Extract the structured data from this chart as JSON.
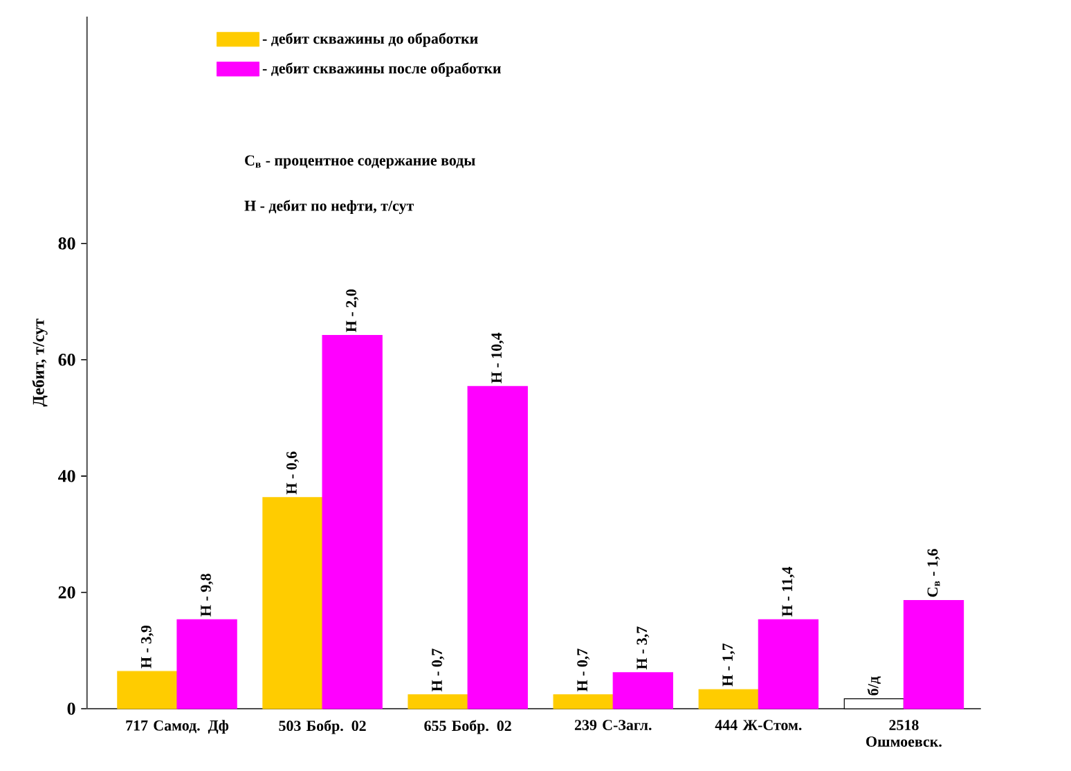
{
  "chart_data": {
    "type": "bar",
    "ylabel": "Дебит, т/сут",
    "categories": [
      "717 Самод. Дф",
      "503 Бобр. 02",
      "655 Бобр. 02",
      "239 С-Загл.",
      "444 Ж-Стом.",
      "2518 Ошмоевск."
    ],
    "series": [
      {
        "name": "- дебит скважины до обработки",
        "color": "#ffcc00",
        "colors": [
          "#ffcc00",
          "#ffcc00",
          "#ffcc00",
          "#ffcc00",
          "#ffcc00",
          "#ffffff"
        ],
        "values": [
          6.4,
          36.3,
          2.4,
          2.4,
          3.3,
          1.7
        ]
      },
      {
        "name": "- дебит скважины после обработки",
        "color": "#ff00ff",
        "values": [
          15.3,
          64.2,
          55.4,
          6.2,
          15.3,
          18.6
        ]
      }
    ],
    "ylim": [
      0,
      119
    ],
    "yticks": [
      0,
      20,
      40,
      60,
      80
    ],
    "legend": "top",
    "grid": false,
    "annotations": [
      "С$_{в}$ - процентное содержание воды",
      "Н  - дебит по нефти, т/сут",
      {
        "text": "Н - 3,9",
        "x": "717 Самод. Дф",
        "y": 6.4
      },
      {
        "text": "Н - 9,8",
        "x": "717 Самод. Дф",
        "y": 15.3
      },
      {
        "text": "Н - 0,6",
        "x": "503 Бобр. 02",
        "y": 36.3
      },
      {
        "text": "Н - 2,0",
        "x": "503 Бобр. 02",
        "y": 64.2
      },
      {
        "text": "Н - 0,7",
        "x": "655 Бобр. 02",
        "y": 2.4
      },
      {
        "text": "Н - 10,4",
        "x": "655 Бобр. 02",
        "y": 55.4
      },
      {
        "text": "Н - 0,7",
        "x": "239 С-Загл.",
        "y": 2.4
      },
      {
        "text": "Н - 3,7",
        "x": "239 С-Загл.",
        "y": 6.2
      },
      {
        "text": "Н - 1,7",
        "x": "444 Ж-Стом.",
        "y": 3.3
      },
      {
        "text": "Н - 11,4",
        "x": "444 Ж-Стом.",
        "y": 15.3
      },
      {
        "text": "б/д",
        "x": "2518 Ошмоевск.",
        "y": 1.7
      },
      {
        "text": "С$_{в}$ - 1,6",
        "x": "2518 Ошмоевск.",
        "y": 18.6
      }
    ]
  }
}
